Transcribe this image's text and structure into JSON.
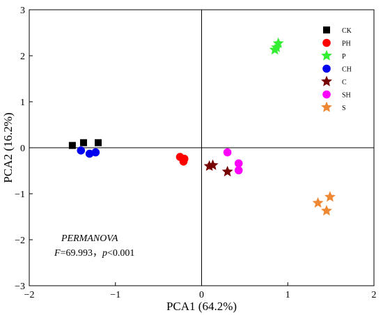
{
  "chart_data": {
    "type": "scatter",
    "xlabel": "PCA1 (64.2%)",
    "ylabel": "PCA2 (16.2%)",
    "xlim": [
      -2,
      2
    ],
    "ylim": [
      -3,
      3
    ],
    "xticks": [
      -2,
      -1,
      0,
      1,
      2
    ],
    "yticks": [
      -3,
      -2,
      -1,
      0,
      1,
      2,
      3
    ],
    "reference_lines": {
      "x": 0,
      "y": 0
    },
    "grid": false,
    "legend_position": "top-right",
    "series": [
      {
        "name": "CK",
        "marker": "square",
        "color": "#000000",
        "points": [
          [
            -1.5,
            0.05
          ],
          [
            -1.37,
            0.11
          ],
          [
            -1.2,
            0.11
          ]
        ]
      },
      {
        "name": "PH",
        "marker": "circle",
        "color": "#ff0000",
        "points": [
          [
            -0.25,
            -0.2
          ],
          [
            -0.2,
            -0.24
          ],
          [
            -0.21,
            -0.3
          ]
        ]
      },
      {
        "name": "P",
        "marker": "star",
        "color": "#33ee33",
        "points": [
          [
            0.85,
            2.13
          ],
          [
            0.87,
            2.18
          ],
          [
            0.89,
            2.27
          ]
        ]
      },
      {
        "name": "CH",
        "marker": "circle",
        "color": "#0000ee",
        "points": [
          [
            -1.4,
            -0.06
          ],
          [
            -1.3,
            -0.13
          ],
          [
            -1.23,
            -0.1
          ]
        ]
      },
      {
        "name": "C",
        "marker": "star",
        "color": "#770000",
        "points": [
          [
            0.09,
            -0.4
          ],
          [
            0.13,
            -0.38
          ],
          [
            0.3,
            -0.52
          ]
        ]
      },
      {
        "name": "SH",
        "marker": "circle",
        "color": "#ff00ff",
        "points": [
          [
            0.3,
            -0.1
          ],
          [
            0.43,
            -0.34
          ],
          [
            0.43,
            -0.49
          ]
        ]
      },
      {
        "name": "S",
        "marker": "star",
        "color": "#ee8833",
        "points": [
          [
            1.35,
            -1.2
          ],
          [
            1.45,
            -1.37
          ],
          [
            1.49,
            -1.07
          ]
        ]
      }
    ],
    "annotation": {
      "title": "PERMANOVA",
      "f_label": "F",
      "f_value": "=69.993，",
      "p_label": "p",
      "p_value": "<0.001"
    }
  }
}
